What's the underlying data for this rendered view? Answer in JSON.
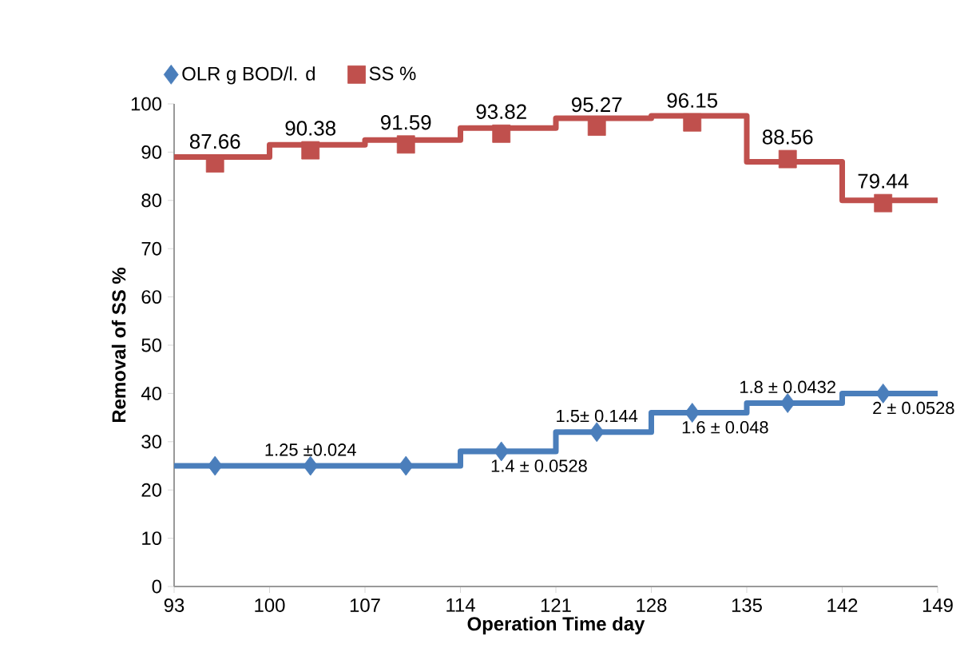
{
  "chart_data": {
    "type": "scatter",
    "xlabel": "Operation Time    day",
    "ylabel": "Removal of SS  %",
    "xlim": [
      93,
      149
    ],
    "xticks": [
      93,
      100,
      107,
      114,
      121,
      128,
      135,
      142,
      149
    ],
    "ylim": [
      0,
      100
    ],
    "yticks": [
      0,
      10,
      20,
      30,
      40,
      50,
      60,
      70,
      80,
      90,
      100
    ],
    "grid": false,
    "legend": "top left",
    "series": [
      {
        "type": "step",
        "color": "#4a7ebb",
        "x": [
          93,
          100,
          107,
          114,
          121,
          128,
          135,
          142,
          149
        ],
        "values": [
          25,
          25,
          25,
          28,
          32,
          36,
          38,
          40,
          40
        ]
      },
      {
        "type": "step",
        "color": "#c0504d",
        "x": [
          93,
          100,
          107,
          114,
          121,
          128,
          135,
          142,
          149
        ],
        "values": [
          89,
          91.5,
          92.5,
          95,
          97,
          97.5,
          88,
          80,
          80
        ]
      },
      {
        "name": "OLR g BOD/l. d",
        "color": "#4a7ebb",
        "marker": "diamond",
        "x": [
          96,
          103,
          110,
          117,
          124,
          131,
          138,
          145
        ],
        "values": [
          25,
          25,
          25,
          28,
          32,
          36,
          38,
          40
        ],
        "value_labels": [
          null,
          "1.25 ±0.024",
          null,
          "1.4 ± 0.0528",
          "1.5± 0.144",
          "1.6 ± 0.048",
          "1.8 ± 0.0432",
          "2 ± 0.0528"
        ]
      },
      {
        "name": "SS %",
        "color": "#c0504d",
        "marker": "square",
        "x": [
          96,
          103,
          110,
          117,
          124,
          131,
          138,
          145
        ],
        "values": [
          87.66,
          90.38,
          91.59,
          93.82,
          95.27,
          96.15,
          88.56,
          79.44
        ],
        "value_labels": [
          "87.66",
          "90.38",
          "91.59",
          "93.82",
          "95.27",
          "96.15",
          "88.56",
          "79.44"
        ]
      }
    ]
  }
}
